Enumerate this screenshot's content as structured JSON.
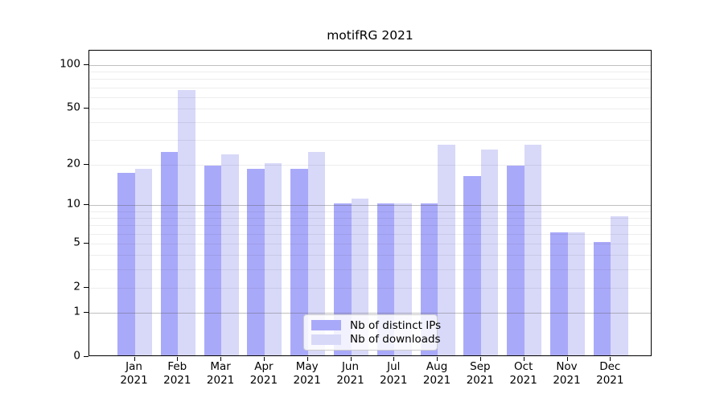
{
  "chart_data": {
    "type": "bar",
    "title": "motifRG 2021",
    "categories": [
      "Jan",
      "Feb",
      "Mar",
      "Apr",
      "May",
      "Jun",
      "Jul",
      "Aug",
      "Sep",
      "Oct",
      "Nov",
      "Dec"
    ],
    "x_sublabel": "2021",
    "series": [
      {
        "name": "Nb of distinct IPs",
        "color": "#a9a9fa",
        "values": [
          17,
          24,
          19,
          18,
          18,
          10,
          10,
          10,
          16,
          19,
          6,
          5
        ]
      },
      {
        "name": "Nb of downloads",
        "color": "#d8d8f9",
        "values": [
          18,
          65,
          23,
          20,
          24,
          11,
          10,
          27,
          25,
          27,
          6,
          8
        ]
      }
    ],
    "y_ticks": [
      0,
      1,
      2,
      5,
      10,
      20,
      50,
      100
    ],
    "y_minor_gridlines": [
      2,
      3,
      4,
      5,
      6,
      7,
      8,
      9,
      20,
      30,
      40,
      50,
      60,
      70,
      80,
      90
    ],
    "y_major_gridlines": [
      1,
      10,
      100
    ],
    "y_scale": "log1p",
    "ylim": [
      0,
      127
    ],
    "grid": "horizontal",
    "legend_position": "bottom-center",
    "background_color": "#ffffff",
    "axis_text_color": "#000000"
  }
}
